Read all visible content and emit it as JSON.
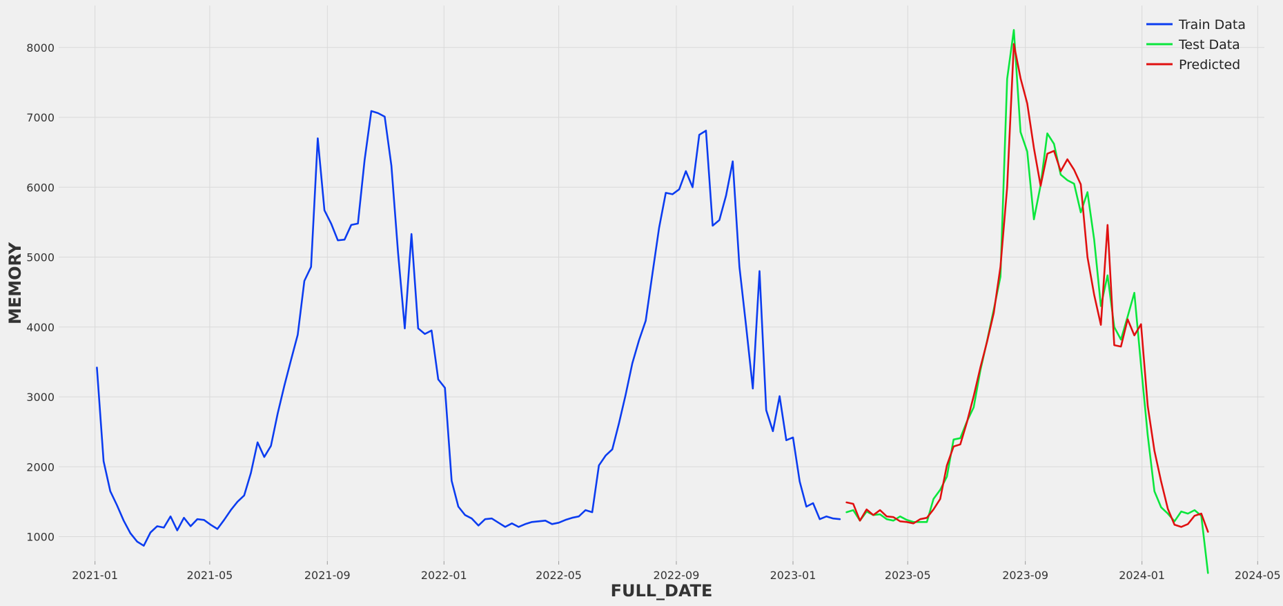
{
  "chart_data": {
    "type": "line",
    "title": "",
    "xlabel": "FULL_DATE",
    "ylabel": "MEMORY",
    "xlim": [
      "2020-11-24",
      "2024-05-08"
    ],
    "ylim": [
      650,
      8600
    ],
    "x_ticks": [
      "2021-01",
      "2021-05",
      "2021-09",
      "2022-01",
      "2022-05",
      "2022-09",
      "2023-01",
      "2023-05",
      "2023-09",
      "2024-01",
      "2024-05"
    ],
    "y_ticks": [
      1000,
      2000,
      3000,
      4000,
      5000,
      6000,
      7000,
      8000
    ],
    "grid": true,
    "legend_position": "top-right",
    "series": [
      {
        "name": "Train Data",
        "color": "#0b3cf0",
        "start_date": "2021-01-03",
        "interval": "weekly",
        "values": [
          3420,
          2080,
          1650,
          1450,
          1230,
          1050,
          930,
          870,
          1060,
          1150,
          1130,
          1290,
          1090,
          1270,
          1150,
          1250,
          1240,
          1170,
          1110,
          1240,
          1380,
          1500,
          1590,
          1910,
          2350,
          2140,
          2300,
          2760,
          3160,
          3530,
          3890,
          4660,
          4860,
          6700,
          5670,
          5480,
          5240,
          5250,
          5460,
          5480,
          6390,
          7090,
          7060,
          7010,
          6310,
          5060,
          3980,
          5330,
          3980,
          3900,
          3950,
          3250,
          3130,
          1800,
          1430,
          1310,
          1260,
          1160,
          1250,
          1260,
          1200,
          1140,
          1190,
          1140,
          1180,
          1210,
          1220,
          1230,
          1180,
          1200,
          1240,
          1270,
          1290,
          1380,
          1350,
          2020,
          2160,
          2250,
          2620,
          3030,
          3480,
          3810,
          4090,
          4760,
          5420,
          5920,
          5900,
          5970,
          6230,
          6000,
          6750,
          6810,
          5450,
          5530,
          5880,
          6370,
          4860,
          4010,
          3120,
          4800,
          2810,
          2510,
          3010,
          2380,
          2420,
          1790,
          1430,
          1480,
          1250,
          1290,
          1260,
          1250
        ]
      },
      {
        "name": "Test Data",
        "color": "#0ae63c",
        "start_date": "2023-02-26",
        "interval": "weekly",
        "values": [
          1350,
          1380,
          1230,
          1360,
          1310,
          1320,
          1250,
          1230,
          1290,
          1240,
          1210,
          1210,
          1210,
          1540,
          1670,
          1860,
          2390,
          2410,
          2650,
          2850,
          3380,
          3800,
          4250,
          4720,
          7550,
          8250,
          6790,
          6510,
          5540,
          6030,
          6770,
          6620,
          6180,
          6100,
          6050,
          5640,
          5930,
          5250,
          4300,
          4740,
          4000,
          3820,
          4150,
          4490,
          3450,
          2450,
          1650,
          1420,
          1330,
          1220,
          1360,
          1330,
          1380,
          1300,
          480
        ]
      },
      {
        "name": "Predicted",
        "color": "#e01010",
        "start_date": "2023-02-26",
        "interval": "weekly",
        "values": [
          1490,
          1470,
          1230,
          1390,
          1310,
          1380,
          1290,
          1280,
          1220,
          1210,
          1190,
          1250,
          1270,
          1390,
          1540,
          2020,
          2290,
          2320,
          2640,
          3010,
          3420,
          3790,
          4200,
          4860,
          6000,
          8050,
          7560,
          7200,
          6560,
          6020,
          6480,
          6520,
          6230,
          6400,
          6250,
          6040,
          5000,
          4460,
          4030,
          5460,
          3740,
          3720,
          4110,
          3880,
          4040,
          2870,
          2230,
          1790,
          1400,
          1170,
          1140,
          1180,
          1300,
          1330,
          1070
        ]
      }
    ]
  }
}
